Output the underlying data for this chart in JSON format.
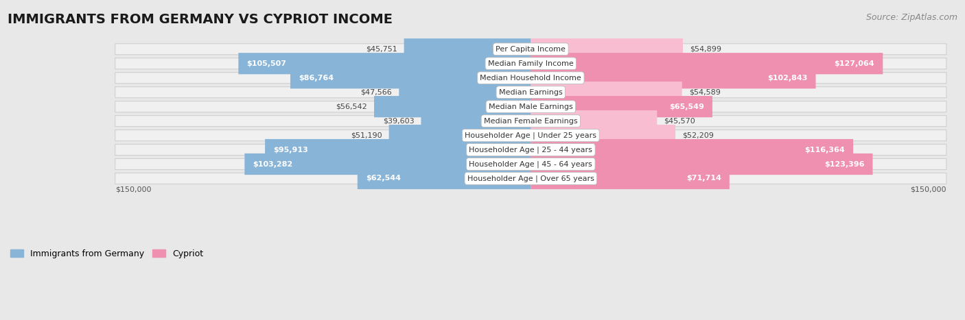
{
  "title": "IMMIGRANTS FROM GERMANY VS CYPRIOT INCOME",
  "source": "Source: ZipAtlas.com",
  "categories": [
    "Per Capita Income",
    "Median Family Income",
    "Median Household Income",
    "Median Earnings",
    "Median Male Earnings",
    "Median Female Earnings",
    "Householder Age | Under 25 years",
    "Householder Age | 25 - 44 years",
    "Householder Age | 45 - 64 years",
    "Householder Age | Over 65 years"
  ],
  "germany_values": [
    45751,
    105507,
    86764,
    47566,
    56542,
    39603,
    51190,
    95913,
    103282,
    62544
  ],
  "cypriot_values": [
    54899,
    127064,
    102843,
    54589,
    65549,
    45570,
    52209,
    116364,
    123396,
    71714
  ],
  "germany_color": "#88b4d8",
  "germany_color_dark": "#5a9abf",
  "cypriot_color": "#f090b0",
  "cypriot_color_light": "#f8bdd0",
  "max_value": 150000,
  "x_label_left": "$150,000",
  "x_label_right": "$150,000",
  "background_color": "#e8e8e8",
  "row_bg_color": "#f0f0f0",
  "legend_germany": "Immigrants from Germany",
  "legend_cypriot": "Cypriot",
  "title_fontsize": 14,
  "source_fontsize": 9,
  "inside_text_threshold": 60000,
  "bar_label_fontsize": 8,
  "cat_label_fontsize": 8
}
